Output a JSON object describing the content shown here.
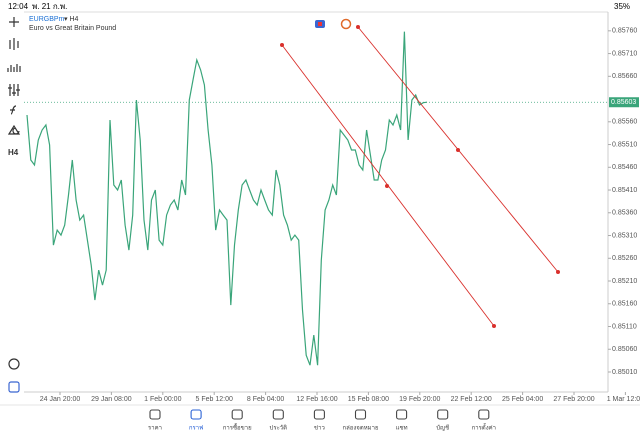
{
  "status_bar": {
    "time": "12:04",
    "date": "พ. 21 ก.พ.",
    "battery": "35%"
  },
  "symbol": {
    "name": "EURGBPm",
    "timeframe": "▾ H4",
    "description": "Euro vs Great Britain Pound"
  },
  "toolbar": {
    "timeframe": "H4"
  },
  "chart": {
    "type": "line",
    "color": "#3aa57a",
    "values": [
      0.85575,
      0.85476,
      0.85465,
      0.8552,
      0.85542,
      0.85553,
      0.85509,
      0.85289,
      0.85322,
      0.85311,
      0.85333,
      0.85399,
      0.85476,
      0.85388,
      0.85344,
      0.85355,
      0.853,
      0.85245,
      0.85168,
      0.85234,
      0.85201,
      0.85234,
      0.85564,
      0.85421,
      0.8541,
      0.85432,
      0.85333,
      0.85278,
      0.85355,
      0.85608,
      0.8552,
      0.85344,
      0.85278,
      0.85388,
      0.8541,
      0.853,
      0.85289,
      0.85355,
      0.85377,
      0.85388,
      0.85366,
      0.85432,
      0.85399,
      0.85608,
      0.85652,
      0.85696,
      0.85674,
      0.85641,
      0.85542,
      0.85465,
      0.85322,
      0.85366,
      0.85355,
      0.85344,
      0.85157,
      0.85289,
      0.85366,
      0.85421,
      0.85432,
      0.8541,
      0.85388,
      0.85377,
      0.8541,
      0.85388,
      0.85366,
      0.85355,
      0.85454,
      0.85421,
      0.85355,
      0.85333,
      0.853,
      0.85311,
      0.853,
      0.85146,
      0.85047,
      0.85025,
      0.85091,
      0.85025,
      0.85256,
      0.85366,
      0.85388,
      0.85421,
      0.85399,
      0.85542,
      0.85531,
      0.8552,
      0.85498,
      0.85498,
      0.85465,
      0.85454,
      0.85542,
      0.85487,
      0.85432,
      0.85432,
      0.85476,
      0.85498,
      0.85564,
      0.85553,
      0.85575,
      0.85542,
      0.85758,
      0.8552,
      0.85608,
      0.85619,
      0.85597,
      0.85602,
      0.85603
    ],
    "ylim": [
      0.84966,
      0.85775
    ],
    "yticks": [
      {
        "value": 0.8576,
        "label": "0.85760"
      },
      {
        "value": 0.8571,
        "label": "0.85710"
      },
      {
        "value": 0.8566,
        "label": "0.85660"
      },
      {
        "value": 0.8556,
        "label": "0.85560"
      },
      {
        "value": 0.8551,
        "label": "0.85510"
      },
      {
        "value": 0.8546,
        "label": "0.85460"
      },
      {
        "value": 0.8541,
        "label": "0.85410"
      },
      {
        "value": 0.8536,
        "label": "0.85360"
      },
      {
        "value": 0.8531,
        "label": "0.85310"
      },
      {
        "value": 0.8526,
        "label": "0.85260"
      },
      {
        "value": 0.8521,
        "label": "0.85210"
      },
      {
        "value": 0.8516,
        "label": "0.85160"
      },
      {
        "value": 0.8511,
        "label": "0.85110"
      },
      {
        "value": 0.8506,
        "label": "0.85060"
      },
      {
        "value": 0.8501,
        "label": "0.85010"
      }
    ],
    "x_labels": [
      "24 Jan 20:00",
      "29 Jan 08:00",
      "1 Feb 00:00",
      "5 Feb 12:00",
      "8 Feb 04:00",
      "12 Feb 16:00",
      "15 Feb 08:00",
      "19 Feb 20:00",
      "22 Feb 12:00",
      "25 Feb 04:00",
      "27 Feb 20:00",
      "1 Mar 12:00"
    ],
    "last_price": {
      "value": 0.85603,
      "label": "0.85603"
    }
  },
  "nav": [
    {
      "label": "ราคา"
    },
    {
      "label": "กราฟ",
      "active": true
    },
    {
      "label": "การซื้อขาย"
    },
    {
      "label": "ประวัติ"
    },
    {
      "label": "ข่าว"
    },
    {
      "label": "กล่องจดหมาย"
    },
    {
      "label": "แชท"
    },
    {
      "label": "บัญชี"
    },
    {
      "label": "การตั้งค่า"
    }
  ]
}
